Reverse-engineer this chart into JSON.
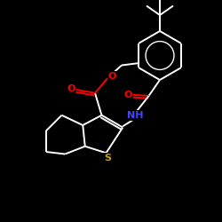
{
  "background_color": "#000000",
  "bond_color": "#ffffff",
  "o_color": "#ff0000",
  "n_color": "#4444ff",
  "s_color": "#c8a000",
  "figsize": [
    2.5,
    2.5
  ],
  "dpi": 100,
  "xlim": [
    0,
    10
  ],
  "ylim": [
    0,
    10
  ],
  "lw": 1.4,
  "fontsize": 8
}
